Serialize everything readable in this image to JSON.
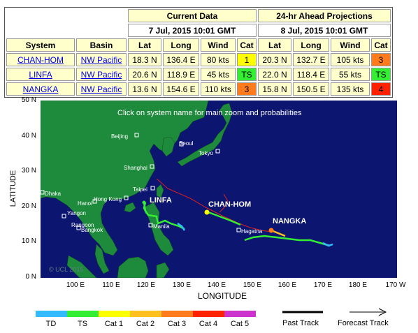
{
  "table": {
    "current_header": "Current Data",
    "ahead_header": "24-hr Ahead Projections",
    "current_time": "7 Jul, 2015 10:01 GMT",
    "ahead_time": "8 Jul, 2015 10:01 GMT",
    "col_system": "System",
    "col_basin": "Basin",
    "col_lat": "Lat",
    "col_long": "Long",
    "col_wind": "Wind",
    "col_cat": "Cat",
    "rows": [
      {
        "system": "CHAN-HOM",
        "basin": "NW Pacific",
        "lat": "18.3 N",
        "long": "136.4 E",
        "wind": "80 kts",
        "cat": "1",
        "cat_color": "#ffff00",
        "p_lat": "20.3 N",
        "p_long": "132.7 E",
        "p_wind": "105 kts",
        "p_cat": "3",
        "p_cat_color": "#ff7b1c"
      },
      {
        "system": "LINFA",
        "basin": "NW Pacific",
        "lat": "20.6 N",
        "long": "118.9 E",
        "wind": "45 kts",
        "cat": "TS",
        "cat_color": "#33ee33",
        "p_lat": "22.0 N",
        "p_long": "118.4 E",
        "p_wind": "55 kts",
        "p_cat": "TS",
        "p_cat_color": "#33ee33"
      },
      {
        "system": "NANGKA",
        "basin": "NW Pacific",
        "lat": "13.6 N",
        "long": "154.6 E",
        "wind": "110 kts",
        "cat": "3",
        "cat_color": "#ff7b1c",
        "p_lat": "15.8 N",
        "p_long": "150.5 E",
        "p_wind": "135 kts",
        "p_cat": "4",
        "p_cat_color": "#ff2200"
      }
    ]
  },
  "map": {
    "instruction": "Click on system name for main zoom and probabilities",
    "storm_labels": [
      "LINFA",
      "CHAN-HOM",
      "NANGKA"
    ],
    "cities": [
      "Beijing",
      "Seoul",
      "Tokyo",
      "Shanghai",
      "Taipei",
      "Hong Kong",
      "Hanoi",
      "Dhaka",
      "Yangon",
      "Rangoon",
      "Bangkok",
      "Manila",
      "Hagatna"
    ],
    "copyright": "© UCL 2015",
    "y_ticks": [
      "50 N",
      "40 N",
      "30 N",
      "20 N",
      "10 N",
      "0 N"
    ],
    "x_ticks": [
      "100 E",
      "110 E",
      "120 E",
      "130 E",
      "140 E",
      "150 E",
      "160 E",
      "170 E",
      "180 E",
      "170 W"
    ],
    "xlabel": "LONGITUDE",
    "ylabel": "LATITUDE"
  },
  "legend": {
    "items": [
      {
        "label": "TD",
        "color": "#33bbff"
      },
      {
        "label": "TS",
        "color": "#33ee33"
      },
      {
        "label": "Cat 1",
        "color": "#ffff00"
      },
      {
        "label": "Cat 2",
        "color": "#ffc020"
      },
      {
        "label": "Cat 3",
        "color": "#ff7b1c"
      },
      {
        "label": "Cat 4",
        "color": "#ff2200"
      },
      {
        "label": "Cat 5",
        "color": "#cc33cc"
      }
    ],
    "past_track": "Past Track",
    "forecast_track": "Forecast Track"
  },
  "colors": {
    "ocean": "#0c1570",
    "land": "#1e8a3c",
    "forecast_line": "#e02020"
  }
}
